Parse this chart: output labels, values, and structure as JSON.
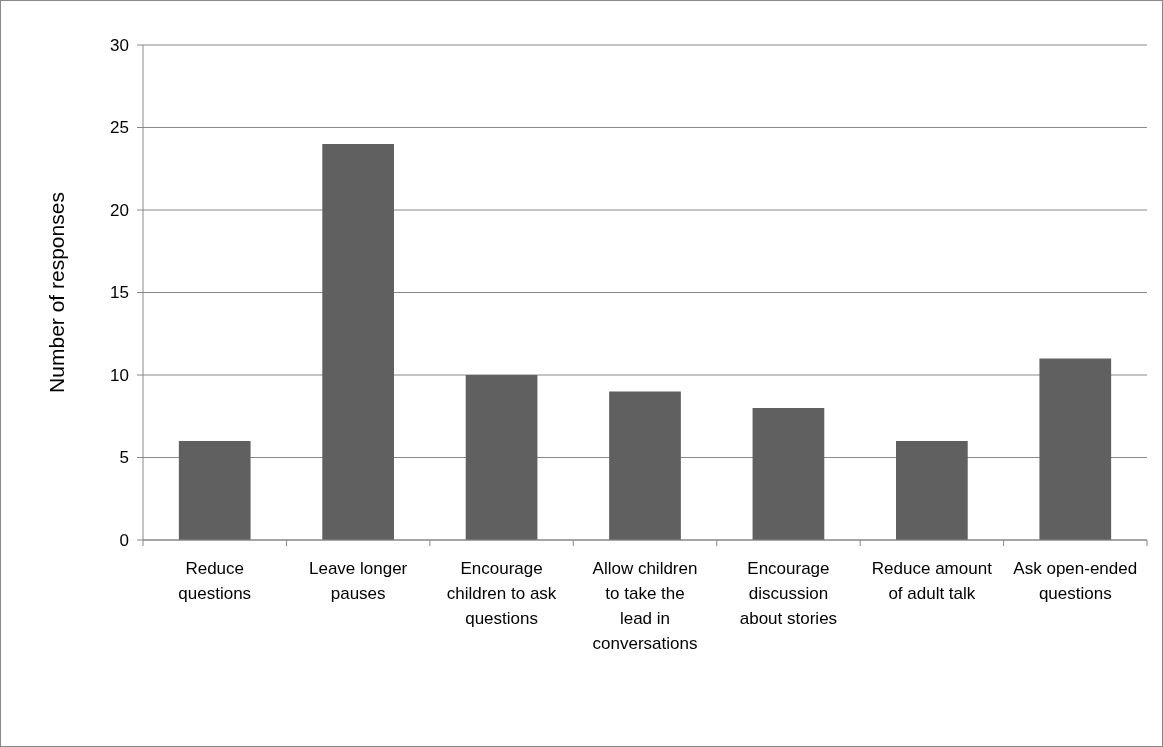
{
  "chart_data": {
    "type": "bar",
    "ylabel": "Number of responses",
    "categories": [
      "Reduce questions",
      "Leave longer pauses",
      "Encourage children to ask questions",
      "Allow children to take the lead in conversations",
      "Encourage discussion about stories",
      "Reduce amount of adult talk",
      "Ask open-ended questions"
    ],
    "values": [
      6,
      24,
      10,
      9,
      8,
      6,
      11
    ],
    "color": "#606060",
    "ylim": [
      0,
      30
    ],
    "yticks": [
      0,
      5,
      10,
      15,
      20,
      25,
      30
    ],
    "grid": "y"
  }
}
